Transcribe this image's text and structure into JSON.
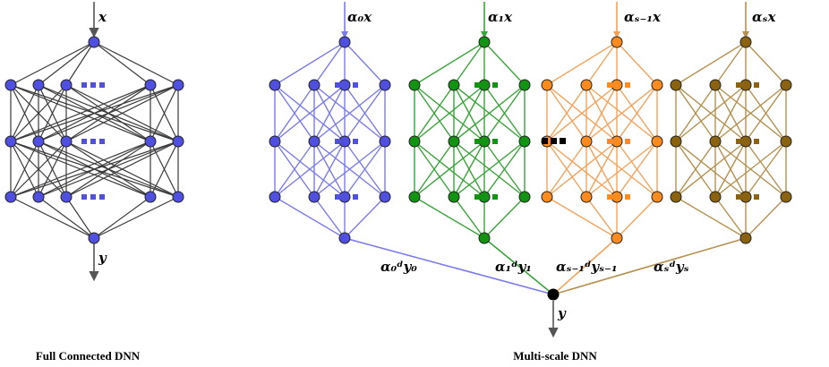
{
  "labels": {
    "input_x": "x",
    "output_y_full": "y",
    "output_y_multi": "y",
    "caption_full": "Full Connected DNN",
    "caption_multi": "Multi-scale DNN"
  },
  "colors": {
    "full_dnn": "#3a3a3a",
    "full_nodes": "#4f4fe0",
    "multi_output_node": "#000000",
    "ellipsis_between": "#000000"
  },
  "subnetworks": [
    {
      "id": "scale-0",
      "input_label": "α₀x",
      "output_label": "α₀ᵈy₀",
      "edge_color": "#7b7bea",
      "node_color": "#4f4fe0",
      "dots_color": "#4f4fe0"
    },
    {
      "id": "scale-1",
      "input_label": "α₁x",
      "output_label": "α₁ᵈy₁",
      "edge_color": "#3aa33a",
      "node_color": "#129312",
      "dots_color": "#129312"
    },
    {
      "id": "scale-s-1",
      "input_label": "αₛ₋₁x",
      "output_label": "αₛ₋₁ᵈyₛ₋₁",
      "edge_color": "#f4a25a",
      "node_color": "#ff8b1f",
      "dots_color": "#ff8b1f"
    },
    {
      "id": "scale-s",
      "input_label": "αₛx",
      "output_label": "αₛᵈyₛ",
      "edge_color": "#b4914f",
      "node_color": "#8b6310",
      "dots_color": "#8b6310"
    }
  ]
}
